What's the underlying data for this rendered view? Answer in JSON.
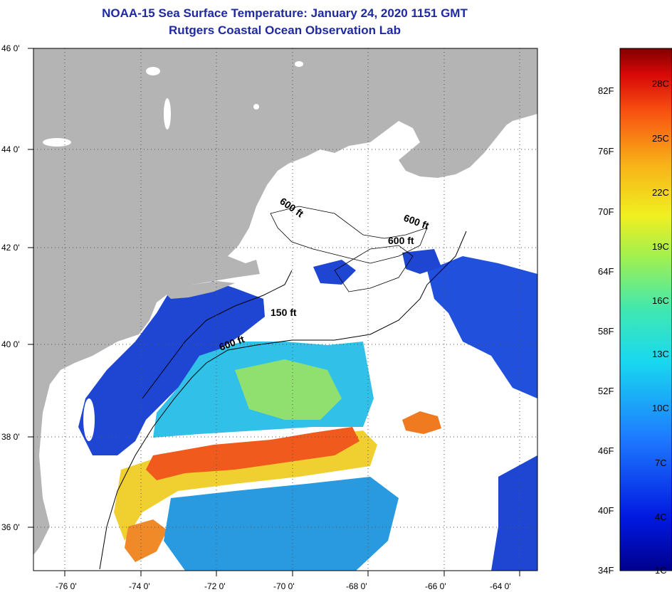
{
  "title": {
    "line1": "NOAA-15 Sea Surface Temperature:  January 24, 2020 1151 GMT",
    "line2": "Rutgers Coastal Ocean Observation Lab"
  },
  "map": {
    "lon_labels": [
      "-76 0'",
      "-74 0'",
      "-72 0'",
      "-70 0'",
      "-68 0'",
      "-66 0'",
      "-64 0'"
    ],
    "lat_labels": [
      "46 0'",
      "44 0'",
      "42 0'",
      "40 0'",
      "38 0'",
      "36 0'"
    ],
    "lon_values": [
      -76,
      -74,
      -72,
      -70,
      -68,
      -66,
      -64
    ],
    "lat_values": [
      46,
      44,
      42,
      40,
      38,
      36
    ],
    "lon_range": [
      -77.0,
      -62.6
    ],
    "lat_range": [
      35.1,
      46.0
    ],
    "contour_labels": [
      {
        "text": "600 ft",
        "lon": -69.8,
        "lat": 42.8
      },
      {
        "text": "600 ft",
        "lon": -65.5,
        "lat": 42.6
      },
      {
        "text": "600 ft",
        "lon": -66.6,
        "lat": 42.1
      },
      {
        "text": "150 ft",
        "lon": -70.3,
        "lat": 40.6
      },
      {
        "text": "600 ft",
        "lon": -71.7,
        "lat": 39.9
      }
    ],
    "colors": {
      "land": "#b4b4b4",
      "cloud": "#ffffff",
      "cold": "#1436c8",
      "cool": "#28c8f0",
      "mild": "#8ce05a",
      "warm": "#f0c828",
      "hot": "#f05018"
    }
  },
  "colorbar": {
    "fahrenheit": [
      "82F",
      "76F",
      "70F",
      "64F",
      "58F",
      "52F",
      "46F",
      "40F",
      "34F"
    ],
    "celsius": [
      "28C",
      "25C",
      "22C",
      "19C",
      "16C",
      "13C",
      "10C",
      "7C",
      "4C",
      "1C"
    ]
  }
}
